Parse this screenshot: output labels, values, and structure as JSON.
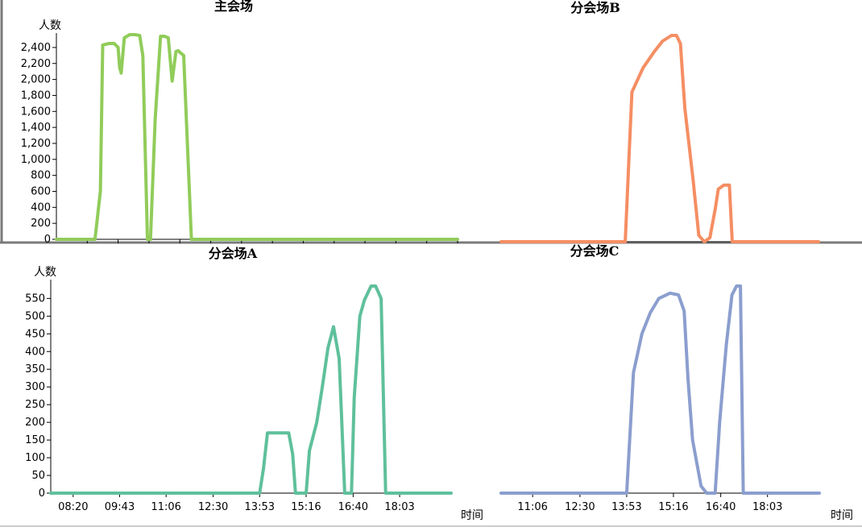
{
  "chart_data": [
    {
      "id": "main",
      "type": "line",
      "title": "主会场",
      "ylabel": "人数",
      "xlabel": "",
      "ylim": [
        0,
        2500
      ],
      "yticks": [
        0,
        200,
        400,
        600,
        800,
        1000,
        1200,
        1400,
        1600,
        1800,
        2000,
        2200,
        2400
      ],
      "ytick_labels": [
        "0",
        "200",
        "400",
        "600",
        "800",
        "1,000",
        "1,200",
        "1,400",
        "1,600",
        "1,800",
        "2,000",
        "2,200",
        "2,400"
      ],
      "xlim": [
        "07:40",
        "16:20"
      ],
      "xticks": [
        "08:20",
        "09:00",
        "09:40",
        "10:20",
        "11:00",
        "11:40",
        "12:20",
        "13:00",
        "13:40",
        "14:20",
        "15:00",
        "15:40",
        "16:20"
      ],
      "color": "#91cc5a",
      "series": [
        {
          "x": [
            "07:40",
            "08:30",
            "08:37",
            "08:40",
            "08:48",
            "08:55",
            "09:00",
            "09:02",
            "09:04",
            "09:08",
            "09:15",
            "09:22",
            "09:28",
            "09:32",
            "09:38",
            "09:42",
            "09:48",
            "09:55",
            "10:00",
            "10:05",
            "10:10",
            "10:15",
            "10:18",
            "10:20",
            "10:25",
            "10:35",
            "11:00",
            "16:20"
          ],
          "y": [
            0,
            0,
            600,
            2430,
            2450,
            2450,
            2400,
            2150,
            2080,
            2520,
            2560,
            2560,
            2550,
            2300,
            0,
            0,
            1500,
            2540,
            2540,
            2520,
            1980,
            2350,
            2360,
            2340,
            2300,
            0,
            0,
            0
          ]
        }
      ]
    },
    {
      "id": "b",
      "type": "line",
      "title": "分会场B",
      "xlim": [
        "10:10",
        "19:40"
      ],
      "color": "#f58e63",
      "series": [
        {
          "x": [
            "10:10",
            "13:53",
            "14:05",
            "14:25",
            "14:45",
            "15:00",
            "15:16",
            "15:25",
            "15:32",
            "15:40",
            "15:55",
            "16:05",
            "16:15",
            "16:25",
            "16:35",
            "16:40",
            "16:50",
            "17:00",
            "17:05",
            "17:10",
            "19:40"
          ],
          "y": [
            0,
            0,
            1850,
            2150,
            2350,
            2480,
            2550,
            2550,
            2450,
            1650,
            750,
            80,
            0,
            50,
            420,
            650,
            700,
            700,
            0,
            0,
            0
          ]
        }
      ]
    },
    {
      "id": "a",
      "type": "line",
      "title": "分会场A",
      "ylabel": "人数",
      "xlabel": "时间",
      "ylim": [
        0,
        585
      ],
      "yticks": [
        0,
        50,
        100,
        150,
        200,
        250,
        300,
        350,
        400,
        450,
        500,
        550
      ],
      "ytick_labels": [
        "0",
        "50",
        "100",
        "150",
        "200",
        "250",
        "300",
        "350",
        "400",
        "450",
        "500",
        "550"
      ],
      "xlim": [
        "07:40",
        "19:35"
      ],
      "xticks": [
        "08:20",
        "09:43",
        "11:06",
        "12:30",
        "13:53",
        "15:16",
        "16:40",
        "18:03"
      ],
      "color": "#5fc09c",
      "series": [
        {
          "x": [
            "07:40",
            "13:53",
            "14:00",
            "14:07",
            "14:15",
            "14:30",
            "14:45",
            "14:52",
            "14:57",
            "15:05",
            "15:16",
            "15:22",
            "15:35",
            "15:45",
            "15:55",
            "16:05",
            "16:15",
            "16:25",
            "16:32",
            "16:37",
            "16:42",
            "16:52",
            "17:00",
            "17:12",
            "17:20",
            "17:30",
            "17:38",
            "17:50",
            "19:35"
          ],
          "y": [
            0,
            0,
            70,
            170,
            170,
            170,
            170,
            110,
            0,
            0,
            0,
            120,
            200,
            300,
            410,
            470,
            380,
            0,
            0,
            0,
            270,
            500,
            545,
            585,
            585,
            550,
            0,
            0,
            0
          ]
        }
      ]
    },
    {
      "id": "c",
      "type": "line",
      "title": "分会场C",
      "xlabel": "时间",
      "xlim": [
        "10:10",
        "19:35"
      ],
      "xticks": [
        "11:06",
        "12:30",
        "13:53",
        "15:16",
        "16:40",
        "18:03"
      ],
      "color": "#8b9ece",
      "series": [
        {
          "x": [
            "10:10",
            "13:53",
            "14:05",
            "14:20",
            "14:35",
            "14:50",
            "15:10",
            "15:25",
            "15:35",
            "15:42",
            "15:50",
            "16:05",
            "16:15",
            "16:30",
            "16:38",
            "16:50",
            "17:00",
            "17:08",
            "17:15",
            "17:20",
            "17:25",
            "19:35"
          ],
          "y": [
            0,
            0,
            340,
            450,
            510,
            550,
            565,
            560,
            515,
            320,
            150,
            20,
            0,
            0,
            200,
            420,
            560,
            585,
            585,
            0,
            0,
            0
          ]
        }
      ]
    }
  ]
}
